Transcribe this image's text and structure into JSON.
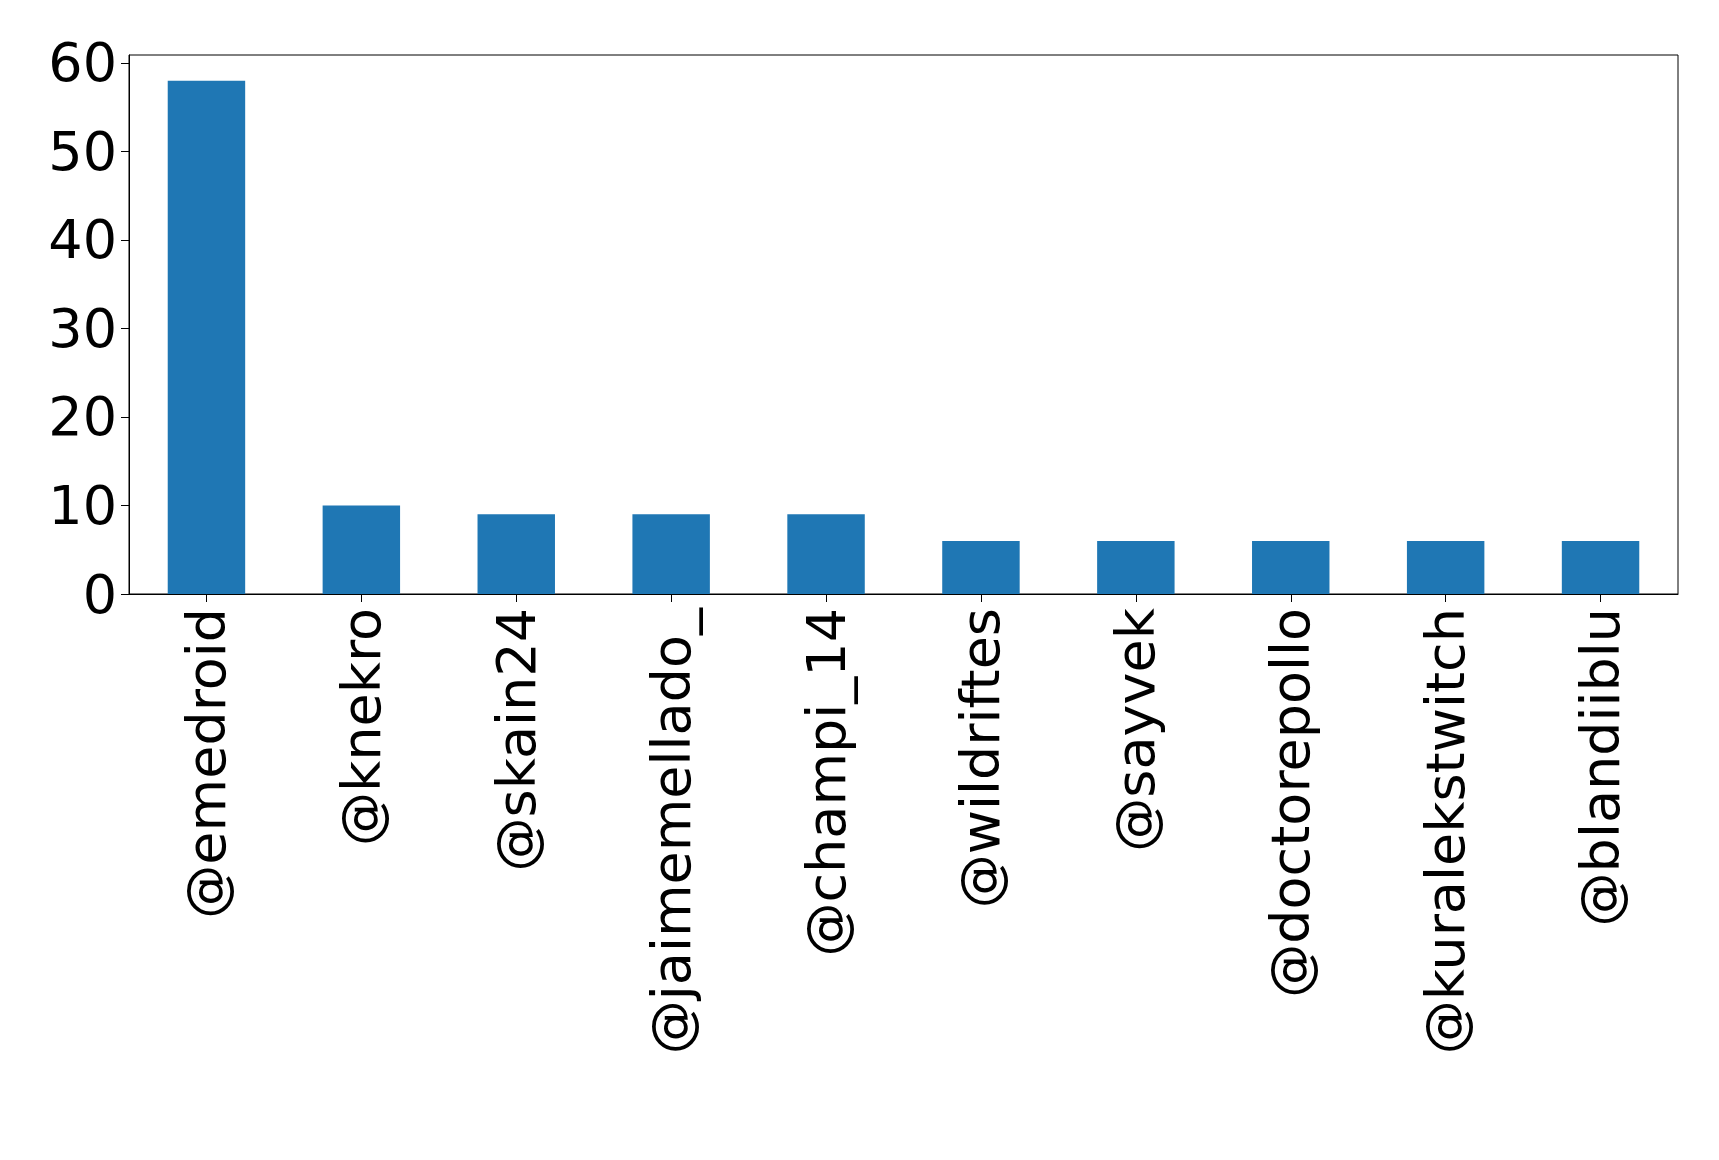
{
  "chart_data": {
    "type": "bar",
    "categories": [
      "@emedroid",
      "@knekro",
      "@skain24",
      "@jaimemellado_",
      "@champi_14",
      "@wildriftes",
      "@sayvek",
      "@doctorepollo",
      "@kuralekstwitch",
      "@blandiiblu"
    ],
    "values": [
      58,
      10,
      9,
      9,
      9,
      6,
      6,
      6,
      6,
      6
    ],
    "color": "#1f77b4",
    "ylim": [
      0,
      60.9
    ],
    "yticks": [
      0,
      10,
      20,
      30,
      40,
      50,
      60
    ],
    "grid": false
  }
}
